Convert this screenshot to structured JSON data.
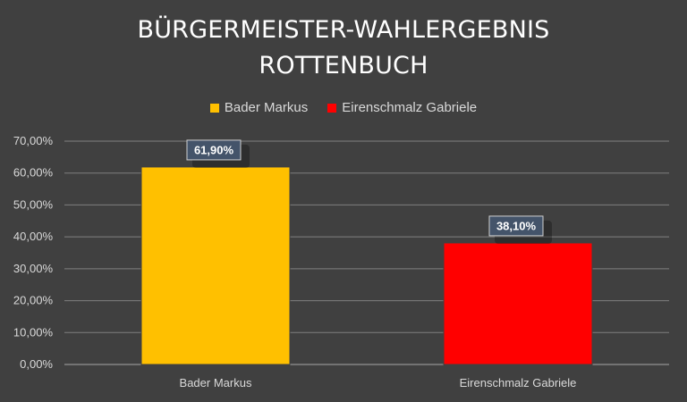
{
  "chart_data": {
    "type": "bar",
    "title_lines": [
      "BÜRGERMEISTER-WAHLERGEBNIS",
      "ROTTENBUCH"
    ],
    "categories": [
      "Bader Markus",
      "Eirenschmalz Gabriele"
    ],
    "values": [
      61.9,
      38.1
    ],
    "value_labels": [
      "61,90%",
      "38,10%"
    ],
    "colors": [
      "#FFC000",
      "#FF0000"
    ],
    "legend": [
      {
        "label": "Bader Markus",
        "color": "#FFC000"
      },
      {
        "label": "Eirenschmalz Gabriele",
        "color": "#FF0000"
      }
    ],
    "legend_position": "top",
    "ylim": [
      0,
      70
    ],
    "yticks": [
      0,
      10,
      20,
      30,
      40,
      50,
      60,
      70
    ],
    "ytick_labels": [
      "0,00%",
      "10,00%",
      "20,00%",
      "30,00%",
      "40,00%",
      "50,00%",
      "60,00%",
      "70,00%"
    ],
    "grid": true,
    "xlabel": "",
    "ylabel": ""
  }
}
